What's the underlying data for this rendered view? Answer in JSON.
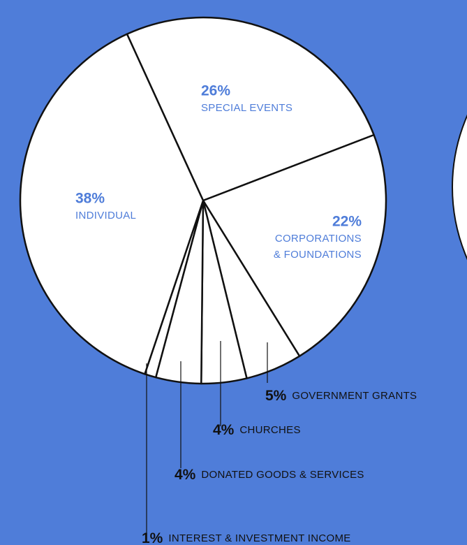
{
  "chart_data": {
    "type": "pie",
    "categories": [
      "SPECIAL EVENTS",
      "CORPORATIONS & FOUNDATIONS",
      "GOVERNMENT GRANTS",
      "CHURCHES",
      "DONATED GOODS & SERVICES",
      "INTEREST & INVESTMENT INCOME",
      "INDIVIDUAL"
    ],
    "values": [
      26,
      22,
      5,
      4,
      4,
      1,
      38
    ],
    "value_labels": [
      "26%",
      "22%",
      "5%",
      "4%",
      "4%",
      "1%",
      "38%"
    ],
    "color": "#ffffff"
  }
}
